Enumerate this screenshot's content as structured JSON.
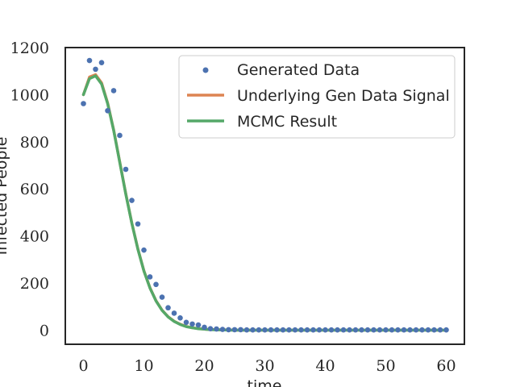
{
  "chart_data": {
    "type": "line",
    "xlabel": "time",
    "ylabel": "Infected People",
    "xlim": [
      -3,
      63
    ],
    "ylim": [
      -60,
      1200
    ],
    "x_ticks": [
      0,
      10,
      20,
      30,
      40,
      50,
      60
    ],
    "y_ticks": [
      0,
      200,
      400,
      600,
      800,
      1000,
      1200
    ],
    "grid": false,
    "legend_position": "top-right",
    "colors": {
      "generated": "#4c72b0",
      "signal": "#dd8452",
      "mcmc": "#55a868",
      "frame": "#262626"
    },
    "series": [
      {
        "name": "Generated Data",
        "kind": "scatter",
        "x": [
          0,
          1,
          2,
          3,
          4,
          5,
          6,
          7,
          8,
          9,
          10,
          11,
          12,
          13,
          14,
          15,
          16,
          17,
          18,
          19,
          20,
          21,
          22,
          23,
          24,
          25,
          26,
          27,
          28,
          29,
          30,
          31,
          32,
          33,
          34,
          35,
          36,
          37,
          38,
          39,
          40,
          41,
          42,
          43,
          44,
          45,
          46,
          47,
          48,
          49,
          50,
          51,
          52,
          53,
          54,
          55,
          56,
          57,
          58,
          59,
          60
        ],
        "y": [
          962,
          1145,
          1108,
          1136,
          932,
          1017,
          827,
          683,
          551,
          451,
          340,
          226,
          194,
          140,
          95,
          72,
          52,
          33,
          26,
          22,
          12,
          6,
          5,
          3,
          2,
          2,
          2,
          1,
          1,
          1,
          1,
          1,
          1,
          1,
          1,
          1,
          1,
          1,
          1,
          1,
          1,
          1,
          1,
          1,
          1,
          1,
          1,
          1,
          1,
          1,
          1,
          1,
          1,
          1,
          1,
          1,
          1,
          1,
          1,
          1,
          1
        ]
      },
      {
        "name": "Underlying Gen Data Signal",
        "kind": "line",
        "x": [
          0,
          1,
          2,
          3,
          4,
          5,
          6,
          7,
          8,
          9,
          10,
          11,
          12,
          13,
          14,
          15,
          16,
          17,
          18,
          19,
          20,
          21,
          22,
          23,
          24,
          25,
          26,
          27,
          28,
          29,
          30,
          31,
          32,
          33,
          34,
          35,
          36,
          37,
          38,
          39,
          40,
          41,
          42,
          43,
          44,
          45,
          46,
          47,
          48,
          49,
          50,
          51,
          52,
          53,
          54,
          55,
          56,
          57,
          58,
          59,
          60
        ],
        "y": [
          1000,
          1075,
          1085,
          1050,
          965,
          850,
          715,
          580,
          455,
          345,
          252,
          180,
          125,
          85,
          57,
          38,
          25,
          16,
          10,
          7,
          4,
          3,
          2,
          1,
          1,
          0,
          0,
          0,
          0,
          0,
          0,
          0,
          0,
          0,
          0,
          0,
          0,
          0,
          0,
          0,
          0,
          0,
          0,
          0,
          0,
          0,
          0,
          0,
          0,
          0,
          0,
          0,
          0,
          0,
          0,
          0,
          0,
          0,
          0,
          0,
          0
        ]
      },
      {
        "name": "MCMC Result",
        "kind": "line",
        "x": [
          0,
          1,
          2,
          3,
          4,
          5,
          6,
          7,
          8,
          9,
          10,
          11,
          12,
          13,
          14,
          15,
          16,
          17,
          18,
          19,
          20,
          21,
          22,
          23,
          24,
          25,
          26,
          27,
          28,
          29,
          30,
          31,
          32,
          33,
          34,
          35,
          36,
          37,
          38,
          39,
          40,
          41,
          42,
          43,
          44,
          45,
          46,
          47,
          48,
          49,
          50,
          51,
          52,
          53,
          54,
          55,
          56,
          57,
          58,
          59,
          60
        ],
        "y": [
          1000,
          1068,
          1080,
          1045,
          962,
          848,
          713,
          578,
          454,
          344,
          251,
          179,
          124,
          84,
          56,
          37,
          24,
          15,
          10,
          6,
          4,
          2,
          1,
          1,
          0,
          0,
          0,
          0,
          0,
          0,
          0,
          0,
          0,
          0,
          0,
          0,
          0,
          0,
          0,
          0,
          0,
          0,
          0,
          0,
          0,
          0,
          0,
          0,
          0,
          0,
          0,
          0,
          0,
          0,
          0,
          0,
          0,
          0,
          0,
          0,
          0
        ]
      }
    ]
  }
}
